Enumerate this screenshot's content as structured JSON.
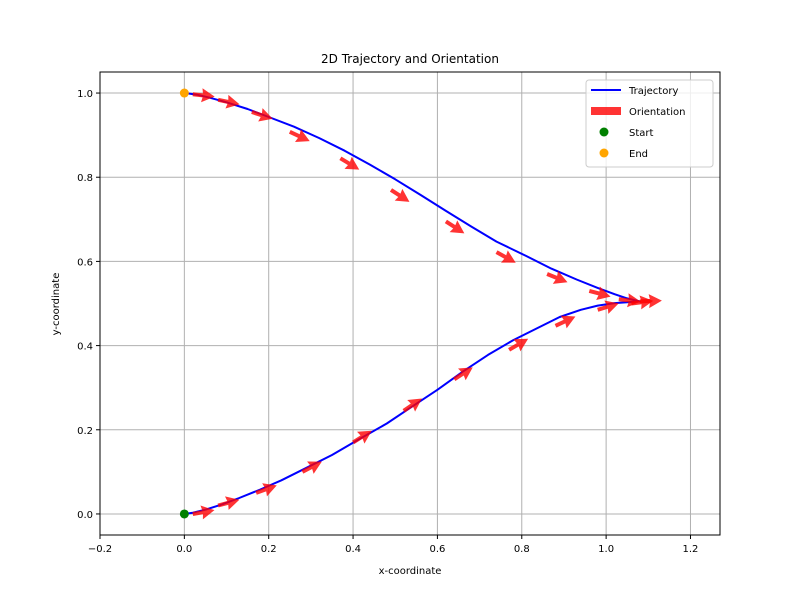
{
  "chart_data": {
    "type": "line",
    "title": "2D Trajectory and Orientation",
    "xlabel": "x-coordinate",
    "ylabel": "y-coordinate",
    "xlim": [
      -0.2,
      1.27
    ],
    "ylim": [
      -0.05,
      1.05
    ],
    "xticks": [
      -0.2,
      0.0,
      0.2,
      0.4,
      0.6,
      0.8,
      1.0,
      1.2
    ],
    "xtick_labels": [
      "−0.2",
      "0.0",
      "0.2",
      "0.4",
      "0.6",
      "0.8",
      "1.0",
      "1.2"
    ],
    "yticks": [
      0.0,
      0.2,
      0.4,
      0.6,
      0.8,
      1.0
    ],
    "ytick_labels": [
      "0.0",
      "0.2",
      "0.4",
      "0.6",
      "0.8",
      "1.0"
    ],
    "grid": true,
    "legend_position": "top-right",
    "colors": {
      "trajectory": "#0000ff",
      "orientation": "#ff0000",
      "start": "#008000",
      "end": "#ffa500",
      "grid": "#b0b0b0"
    },
    "series": [
      {
        "name": "Trajectory",
        "kind": "line",
        "x": [
          0.0,
          0.02,
          0.05,
          0.09,
          0.13,
          0.18,
          0.23,
          0.29,
          0.35,
          0.41,
          0.48,
          0.54,
          0.6,
          0.66,
          0.72,
          0.78,
          0.84,
          0.89,
          0.94,
          0.98,
          1.02,
          1.05,
          1.08,
          1.05,
          1.02,
          0.98,
          0.93,
          0.87,
          0.81,
          0.74,
          0.68,
          0.62,
          0.56,
          0.5,
          0.44,
          0.38,
          0.32,
          0.26,
          0.2,
          0.15,
          0.1,
          0.06,
          0.03,
          0.01,
          0.0
        ],
        "y": [
          0.0,
          0.003,
          0.01,
          0.023,
          0.038,
          0.058,
          0.08,
          0.11,
          0.14,
          0.175,
          0.215,
          0.255,
          0.295,
          0.338,
          0.378,
          0.413,
          0.443,
          0.468,
          0.485,
          0.495,
          0.501,
          0.503,
          0.505,
          0.512,
          0.522,
          0.537,
          0.557,
          0.583,
          0.613,
          0.647,
          0.683,
          0.72,
          0.758,
          0.795,
          0.83,
          0.863,
          0.893,
          0.92,
          0.943,
          0.962,
          0.978,
          0.989,
          0.996,
          0.999,
          1.0
        ]
      },
      {
        "name": "Orientation",
        "kind": "quiver",
        "x": [
          0.02,
          0.08,
          0.17,
          0.28,
          0.4,
          0.52,
          0.64,
          0.77,
          0.88,
          0.98,
          1.06,
          1.08,
          1.03,
          0.96,
          0.86,
          0.74,
          0.62,
          0.49,
          0.37,
          0.25,
          0.16,
          0.08,
          0.02
        ],
        "y": [
          0.0,
          0.02,
          0.05,
          0.1,
          0.17,
          0.245,
          0.32,
          0.39,
          0.447,
          0.485,
          0.5,
          0.505,
          0.51,
          0.53,
          0.57,
          0.622,
          0.695,
          0.77,
          0.845,
          0.908,
          0.955,
          0.984,
          0.997
        ],
        "angle_deg": [
          10,
          15,
          20,
          28,
          32,
          34,
          33,
          30,
          25,
          17,
          7,
          2,
          -6,
          -15,
          -22,
          -29,
          -33,
          -33,
          -31,
          -25,
          -18,
          -12,
          -6
        ]
      },
      {
        "name": "Start",
        "kind": "scatter",
        "x": [
          0.0
        ],
        "y": [
          0.0
        ]
      },
      {
        "name": "End",
        "kind": "scatter",
        "x": [
          0.0
        ],
        "y": [
          1.0
        ]
      }
    ]
  }
}
